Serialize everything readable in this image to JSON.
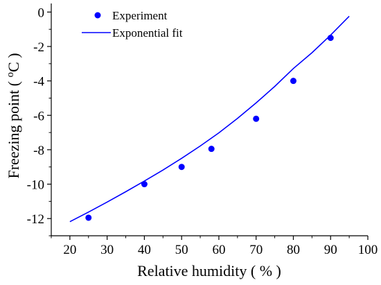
{
  "chart_data": {
    "type": "scatter",
    "xlabel": "Relative humidity ( % )",
    "ylabel_main": "Freezing point ( ",
    "ylabel_sup": "o",
    "ylabel_unit": "C )",
    "xlim": [
      15,
      100
    ],
    "ylim": [
      -13,
      0.5
    ],
    "x_ticks": [
      20,
      30,
      40,
      50,
      60,
      70,
      80,
      90,
      100
    ],
    "y_ticks": [
      0,
      -2,
      -4,
      -6,
      -8,
      -10,
      -12
    ],
    "x_tick_labels": [
      "20",
      "30",
      "40",
      "50",
      "60",
      "70",
      "80",
      "90",
      "100"
    ],
    "y_tick_labels": [
      "0",
      "-2",
      "-4",
      "-6",
      "-8",
      "-10",
      "-12"
    ],
    "series": [
      {
        "name": "Experiment",
        "kind": "scatter",
        "color": "#0000ff",
        "x": [
          25,
          40,
          50,
          58,
          70,
          80,
          90
        ],
        "y": [
          -11.95,
          -10.0,
          -9.0,
          -7.95,
          -6.2,
          -4.0,
          -1.5
        ]
      },
      {
        "name": "Exponential fit",
        "kind": "line",
        "color": "#0000ff",
        "x": [
          20,
          25,
          30,
          35,
          40,
          45,
          50,
          55,
          60,
          65,
          70,
          75,
          80,
          85,
          90,
          95
        ],
        "y": [
          -12.18,
          -11.62,
          -11.04,
          -10.44,
          -9.82,
          -9.18,
          -8.5,
          -7.78,
          -7.02,
          -6.18,
          -5.28,
          -4.32,
          -3.28,
          -2.36,
          -1.34,
          -0.24
        ]
      }
    ],
    "legend": "top-left",
    "grid": false
  }
}
